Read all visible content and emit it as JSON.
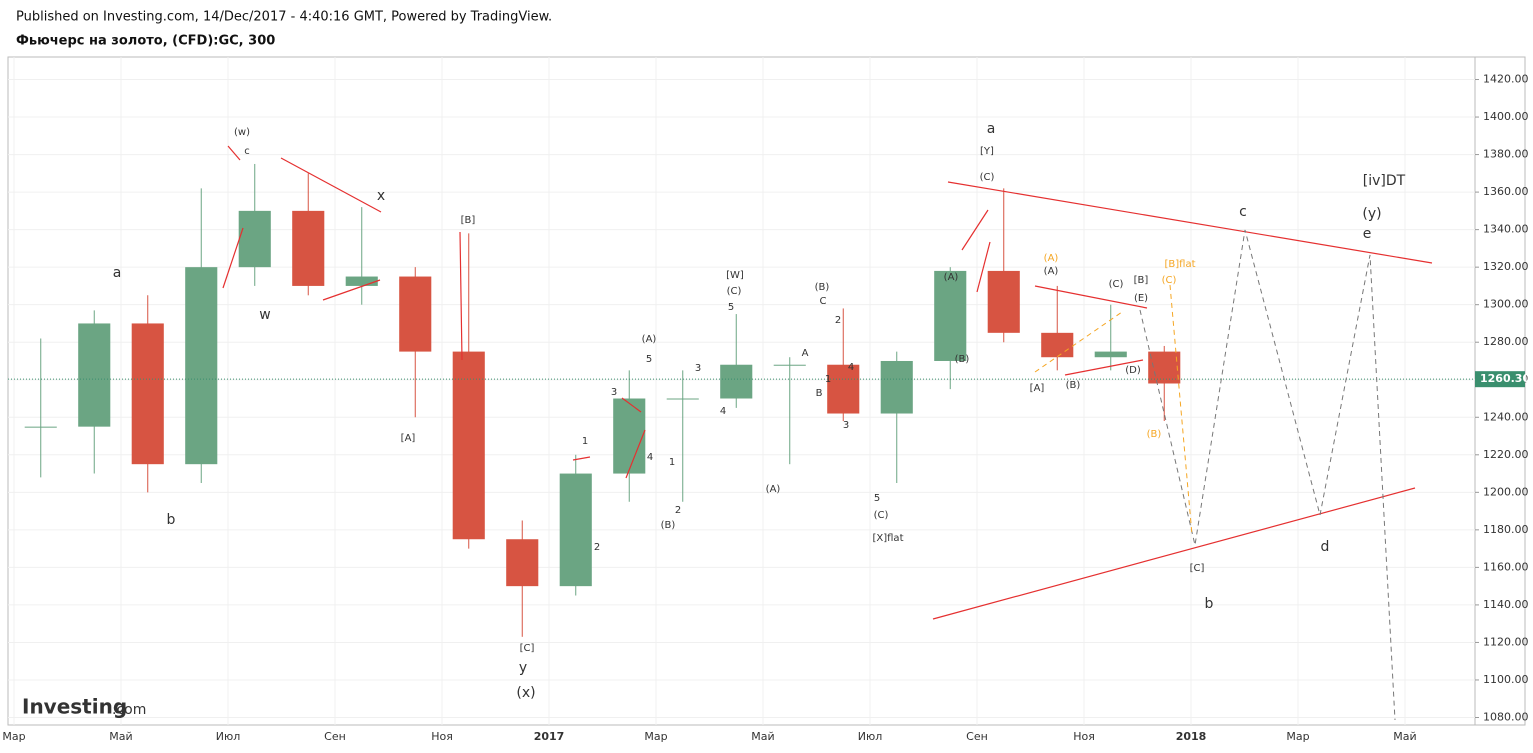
{
  "header": {
    "published": "Published on Investing.com, 14/Dec/2017 - 4:40:16 GMT, Powered by TradingView.",
    "title": "Фьючерс на золото, (CFD):GC, 300"
  },
  "logo": {
    "brand": "Investing",
    "suffix": ".com"
  },
  "chart_data": {
    "type": "candlestick",
    "categories": [
      "Мар",
      null,
      "Май",
      null,
      "Июл",
      null,
      "Сен",
      null,
      "Ноя",
      null,
      "2017",
      null,
      "Мар",
      null,
      "Май",
      null,
      "Июл",
      null,
      "Сен",
      null,
      "Ноя",
      null,
      "2018",
      null,
      "Мар",
      null,
      "Май"
    ],
    "open": [
      1235,
      1235,
      1290,
      1215,
      1320,
      1350,
      1310,
      1315,
      1275,
      1175,
      1150,
      1210,
      1250,
      1250,
      1268,
      1268,
      1242,
      1270,
      1318,
      1285,
      1272,
      1275,
      null,
      null,
      null,
      null,
      null
    ],
    "high": [
      1282,
      1297,
      1305,
      1362,
      1375,
      1370,
      1352,
      1320,
      1338,
      1185,
      1220,
      1265,
      1265,
      1295,
      1272,
      1298,
      1275,
      1320,
      1362,
      1310,
      1300,
      1278,
      null,
      null,
      null,
      null,
      null
    ],
    "low": [
      1208,
      1210,
      1200,
      1205,
      1310,
      1305,
      1300,
      1240,
      1170,
      1123,
      1145,
      1195,
      1195,
      1245,
      1215,
      1238,
      1205,
      1255,
      1280,
      1265,
      1265,
      1238,
      null,
      null,
      null,
      null,
      null
    ],
    "close": [
      1235,
      1290,
      1215,
      1320,
      1350,
      1310,
      1315,
      1275,
      1175,
      1150,
      1210,
      1250,
      1250,
      1268,
      1268,
      1242,
      1270,
      1318,
      1285,
      1272,
      1275,
      1258,
      null,
      null,
      null,
      null,
      null
    ],
    "up_color": "#6ba583",
    "down_color": "#d75442",
    "ylim": [
      1076,
      1432
    ],
    "yticks": [
      {
        "value": 1080,
        "label": "1080.00"
      },
      {
        "value": 1100,
        "label": "1100.00"
      },
      {
        "value": 1120,
        "label": "1120.00"
      },
      {
        "value": 1140,
        "label": "1140.00"
      },
      {
        "value": 1160,
        "label": "1160.00"
      },
      {
        "value": 1180,
        "label": "1180.00"
      },
      {
        "value": 1200,
        "label": "1200.00"
      },
      {
        "value": 1220,
        "label": "1220.00"
      },
      {
        "value": 1240,
        "label": "1240.00"
      },
      {
        "value": 1260,
        "label": "1260.00"
      },
      {
        "value": 1280,
        "label": "1280.00"
      },
      {
        "value": 1300,
        "label": "1300.00"
      },
      {
        "value": 1320,
        "label": "1320.00"
      },
      {
        "value": 1340,
        "label": "1340.00"
      },
      {
        "value": 1360,
        "label": "1360.00"
      },
      {
        "value": 1380,
        "label": "1380.00"
      },
      {
        "value": 1400,
        "label": "1400.00"
      },
      {
        "value": 1420,
        "label": "1420.00"
      }
    ],
    "last_price": {
      "value": 1260.3,
      "label": "1260.30"
    },
    "grid": true,
    "annotations": [
      "(w)",
      "c",
      "a",
      "b",
      "w",
      "x",
      "[B]",
      "[A]",
      "[C]",
      "y",
      "(x)",
      "1",
      "2",
      "3",
      "4",
      "5",
      "(A)",
      "1",
      "2",
      "(B)",
      "3",
      "4",
      "[W]",
      "(C)",
      "5",
      "(A)",
      "A",
      "(B)",
      "C",
      "2",
      "1",
      "B",
      "4",
      "3",
      "5",
      "(C)",
      "[X]flat",
      "(A)",
      "(B)",
      "a",
      "[Y]",
      "(C)",
      "(A)",
      "(A)",
      "[A]",
      "(B)",
      "(C)",
      "[B]",
      "(E)",
      "[B]flat",
      "(C)",
      "(D)",
      "(B)",
      "[C]",
      "b",
      "c",
      "d",
      "[iv]DT",
      "(y)",
      "e"
    ]
  }
}
